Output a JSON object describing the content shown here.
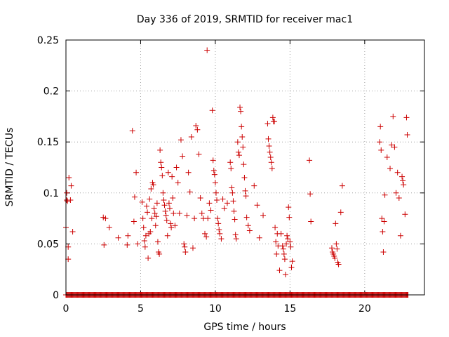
{
  "chart_data": {
    "type": "scatter",
    "title": "Day 336 of 2019, SRMTID for receiver mac1",
    "xlabel": "GPS time / hours",
    "ylabel": "SRMTID / TECUs",
    "xlim": [
      0,
      24
    ],
    "ylim": [
      0,
      0.25
    ],
    "xticks": [
      0,
      5,
      10,
      15,
      20
    ],
    "xtick_labels": [
      "0",
      "5",
      "10",
      "15",
      "20"
    ],
    "yticks": [
      0,
      0.05,
      0.1,
      0.15,
      0.2,
      0.25
    ],
    "ytick_labels": [
      "0",
      "0.05",
      "0.1",
      "0.15",
      "0.2",
      "0.25"
    ],
    "grid": true,
    "marker": "plus",
    "series": [
      {
        "name": "SRMTID",
        "color": "#cc0000",
        "points": [
          [
            0.0,
            0.066
          ],
          [
            0.05,
            0.1
          ],
          [
            0.05,
            0.093
          ],
          [
            0.1,
            0.092
          ],
          [
            0.15,
            0.035
          ],
          [
            0.15,
            0.047
          ],
          [
            0.2,
            0.115
          ],
          [
            0.3,
            0.093
          ],
          [
            0.35,
            0.107
          ],
          [
            0.45,
            0.062
          ],
          [
            2.5,
            0.076
          ],
          [
            2.55,
            0.049
          ],
          [
            2.65,
            0.075
          ],
          [
            2.9,
            0.066
          ],
          [
            3.5,
            0.056
          ],
          [
            4.1,
            0.049
          ],
          [
            4.15,
            0.058
          ],
          [
            4.45,
            0.161
          ],
          [
            4.55,
            0.072
          ],
          [
            4.6,
            0.096
          ],
          [
            4.7,
            0.12
          ],
          [
            4.8,
            0.05
          ],
          [
            5.1,
            0.091
          ],
          [
            5.15,
            0.075
          ],
          [
            5.2,
            0.066
          ],
          [
            5.25,
            0.053
          ],
          [
            5.3,
            0.047
          ],
          [
            5.35,
            0.058
          ],
          [
            5.4,
            0.087
          ],
          [
            5.45,
            0.081
          ],
          [
            5.5,
            0.036
          ],
          [
            5.55,
            0.06
          ],
          [
            5.6,
            0.094
          ],
          [
            5.65,
            0.062
          ],
          [
            5.7,
            0.104
          ],
          [
            5.75,
            0.075
          ],
          [
            5.8,
            0.11
          ],
          [
            5.85,
            0.108
          ],
          [
            5.9,
            0.085
          ],
          [
            5.95,
            0.08
          ],
          [
            6.0,
            0.068
          ],
          [
            6.05,
            0.077
          ],
          [
            6.1,
            0.09
          ],
          [
            6.15,
            0.052
          ],
          [
            6.2,
            0.042
          ],
          [
            6.25,
            0.04
          ],
          [
            6.3,
            0.142
          ],
          [
            6.35,
            0.13
          ],
          [
            6.4,
            0.125
          ],
          [
            6.45,
            0.117
          ],
          [
            6.5,
            0.1
          ],
          [
            6.55,
            0.093
          ],
          [
            6.6,
            0.088
          ],
          [
            6.65,
            0.082
          ],
          [
            6.7,
            0.078
          ],
          [
            6.75,
            0.073
          ],
          [
            6.8,
            0.058
          ],
          [
            6.85,
            0.12
          ],
          [
            6.9,
            0.09
          ],
          [
            6.95,
            0.085
          ],
          [
            7.0,
            0.07
          ],
          [
            7.05,
            0.066
          ],
          [
            7.1,
            0.116
          ],
          [
            7.15,
            0.095
          ],
          [
            7.2,
            0.08
          ],
          [
            7.3,
            0.068
          ],
          [
            7.4,
            0.125
          ],
          [
            7.5,
            0.11
          ],
          [
            7.6,
            0.08
          ],
          [
            7.7,
            0.152
          ],
          [
            7.8,
            0.136
          ],
          [
            7.9,
            0.05
          ],
          [
            7.95,
            0.047
          ],
          [
            8.0,
            0.042
          ],
          [
            8.1,
            0.078
          ],
          [
            8.2,
            0.12
          ],
          [
            8.3,
            0.101
          ],
          [
            8.4,
            0.155
          ],
          [
            8.5,
            0.046
          ],
          [
            8.6,
            0.075
          ],
          [
            8.7,
            0.166
          ],
          [
            8.8,
            0.162
          ],
          [
            8.9,
            0.138
          ],
          [
            9.0,
            0.095
          ],
          [
            9.1,
            0.08
          ],
          [
            9.2,
            0.075
          ],
          [
            9.3,
            0.06
          ],
          [
            9.4,
            0.057
          ],
          [
            9.45,
            0.24
          ],
          [
            9.5,
            0.075
          ],
          [
            9.6,
            0.09
          ],
          [
            9.7,
            0.083
          ],
          [
            9.8,
            0.181
          ],
          [
            9.85,
            0.132
          ],
          [
            9.9,
            0.122
          ],
          [
            9.95,
            0.118
          ],
          [
            10.0,
            0.11
          ],
          [
            10.05,
            0.1
          ],
          [
            10.1,
            0.093
          ],
          [
            10.15,
            0.075
          ],
          [
            10.2,
            0.07
          ],
          [
            10.25,
            0.064
          ],
          [
            10.3,
            0.06
          ],
          [
            10.4,
            0.055
          ],
          [
            10.5,
            0.094
          ],
          [
            10.6,
            0.085
          ],
          [
            10.8,
            0.09
          ],
          [
            11.0,
            0.13
          ],
          [
            11.05,
            0.124
          ],
          [
            11.1,
            0.105
          ],
          [
            11.15,
            0.1
          ],
          [
            11.2,
            0.092
          ],
          [
            11.25,
            0.082
          ],
          [
            11.3,
            0.074
          ],
          [
            11.35,
            0.059
          ],
          [
            11.4,
            0.055
          ],
          [
            11.5,
            0.15
          ],
          [
            11.55,
            0.14
          ],
          [
            11.6,
            0.137
          ],
          [
            11.65,
            0.184
          ],
          [
            11.7,
            0.18
          ],
          [
            11.75,
            0.165
          ],
          [
            11.8,
            0.155
          ],
          [
            11.85,
            0.145
          ],
          [
            11.9,
            0.128
          ],
          [
            11.95,
            0.115
          ],
          [
            12.0,
            0.102
          ],
          [
            12.05,
            0.097
          ],
          [
            12.1,
            0.076
          ],
          [
            12.2,
            0.068
          ],
          [
            12.3,
            0.063
          ],
          [
            12.6,
            0.107
          ],
          [
            12.8,
            0.088
          ],
          [
            12.95,
            0.056
          ],
          [
            13.2,
            0.078
          ],
          [
            13.5,
            0.168
          ],
          [
            13.55,
            0.153
          ],
          [
            13.6,
            0.146
          ],
          [
            13.65,
            0.14
          ],
          [
            13.7,
            0.135
          ],
          [
            13.75,
            0.13
          ],
          [
            13.8,
            0.124
          ],
          [
            13.85,
            0.174
          ],
          [
            13.9,
            0.17
          ],
          [
            13.95,
            0.17
          ],
          [
            14.0,
            0.066
          ],
          [
            14.05,
            0.052
          ],
          [
            14.1,
            0.04
          ],
          [
            14.15,
            0.06
          ],
          [
            14.2,
            0.048
          ],
          [
            14.3,
            0.024
          ],
          [
            14.4,
            0.06
          ],
          [
            14.5,
            0.048
          ],
          [
            14.55,
            0.045
          ],
          [
            14.6,
            0.04
          ],
          [
            14.65,
            0.035
          ],
          [
            14.7,
            0.02
          ],
          [
            14.75,
            0.05
          ],
          [
            14.8,
            0.058
          ],
          [
            14.85,
            0.055
          ],
          [
            14.9,
            0.086
          ],
          [
            14.95,
            0.076
          ],
          [
            15.0,
            0.052
          ],
          [
            15.05,
            0.047
          ],
          [
            15.1,
            0.027
          ],
          [
            15.15,
            0.033
          ],
          [
            16.3,
            0.132
          ],
          [
            16.35,
            0.099
          ],
          [
            16.4,
            0.072
          ],
          [
            17.8,
            0.046
          ],
          [
            17.85,
            0.042
          ],
          [
            17.9,
            0.04
          ],
          [
            17.95,
            0.038
          ],
          [
            18.0,
            0.036
          ],
          [
            18.05,
            0.07
          ],
          [
            18.1,
            0.05
          ],
          [
            18.15,
            0.045
          ],
          [
            18.2,
            0.032
          ],
          [
            18.25,
            0.03
          ],
          [
            18.4,
            0.081
          ],
          [
            18.5,
            0.107
          ],
          [
            21.0,
            0.15
          ],
          [
            21.05,
            0.165
          ],
          [
            21.1,
            0.142
          ],
          [
            21.15,
            0.075
          ],
          [
            21.2,
            0.062
          ],
          [
            21.25,
            0.042
          ],
          [
            21.3,
            0.072
          ],
          [
            21.35,
            0.098
          ],
          [
            21.5,
            0.135
          ],
          [
            21.7,
            0.124
          ],
          [
            21.8,
            0.147
          ],
          [
            21.9,
            0.175
          ],
          [
            22.0,
            0.145
          ],
          [
            22.1,
            0.1
          ],
          [
            22.2,
            0.12
          ],
          [
            22.3,
            0.095
          ],
          [
            22.4,
            0.058
          ],
          [
            22.5,
            0.116
          ],
          [
            22.55,
            0.112
          ],
          [
            22.6,
            0.108
          ],
          [
            22.7,
            0.079
          ],
          [
            22.8,
            0.174
          ],
          [
            22.85,
            0.157
          ]
        ],
        "zero_band": {
          "x_from": 0,
          "x_to": 22.9,
          "y": 0
        }
      }
    ]
  }
}
